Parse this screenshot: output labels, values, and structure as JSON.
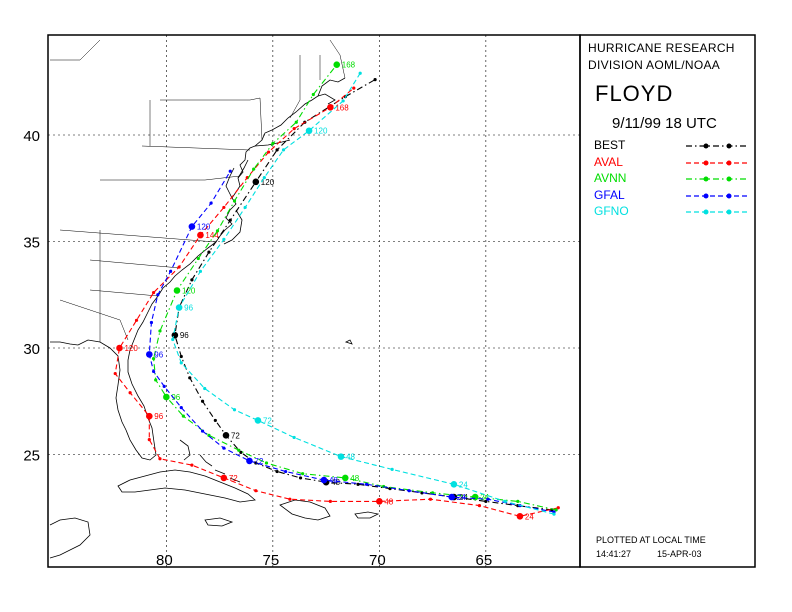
{
  "header": {
    "org_line1": "HURRICANE RESEARCH",
    "org_line2": "DIVISION AOML/NOAA",
    "storm_name": "FLOYD",
    "init_time": "9/11/99 18  UTC"
  },
  "legend": [
    {
      "label": "BEST",
      "color": "#000000",
      "dash": "dashdot"
    },
    {
      "label": "AVAL",
      "color": "#ff0000",
      "dash": "dash"
    },
    {
      "label": "AVNN",
      "color": "#00dd00",
      "dash": "dashdot"
    },
    {
      "label": "GFAL",
      "color": "#0000ff",
      "dash": "dash"
    },
    {
      "label": "GFNO",
      "color": "#00e0e0",
      "dash": "dash"
    }
  ],
  "footer": {
    "plotted_note": "PLOTTED AT LOCAL TIME",
    "clock": "14:41:27",
    "date": "15-APR-03"
  },
  "axes": {
    "lat_ticks": [
      "40",
      "35",
      "30",
      "25"
    ],
    "lon_ticks": [
      "80",
      "75",
      "70",
      "65"
    ],
    "lon_range_west": [
      -85.5,
      -60.5
    ],
    "lat_range": [
      19.5,
      45
    ]
  },
  "chart_data": {
    "type": "map-tracks",
    "units": {
      "x": "longitude (deg W as negative)",
      "y": "latitude (deg N)"
    },
    "series": [
      {
        "name": "BEST",
        "color": "#000000",
        "points": [
          [
            -61.9,
            22.4
          ],
          [
            -63.5,
            22.6
          ],
          [
            -65,
            22.8
          ],
          [
            -66.5,
            23.0
          ],
          [
            -68,
            23.2
          ],
          [
            -69.5,
            23.4
          ],
          [
            -71,
            23.6
          ],
          [
            -72.5,
            23.7
          ],
          [
            -73.7,
            23.9
          ],
          [
            -74.8,
            24.2
          ],
          [
            -75.8,
            24.6
          ],
          [
            -76.5,
            25.1
          ],
          [
            -77.2,
            25.9
          ],
          [
            -77.7,
            26.6
          ],
          [
            -78.3,
            27.5
          ],
          [
            -78.9,
            28.6
          ],
          [
            -79.3,
            29.6
          ],
          [
            -79.6,
            30.6
          ],
          [
            -79.4,
            31.9
          ],
          [
            -78.8,
            33.2
          ],
          [
            -78.0,
            34.5
          ],
          [
            -77.0,
            36.0
          ],
          [
            -75.8,
            37.8
          ],
          [
            -74.8,
            39.3
          ],
          [
            -73.5,
            40.6
          ],
          [
            -71.6,
            41.8
          ],
          [
            -70.2,
            42.6
          ]
        ],
        "labels": [
          {
            "text": "24",
            "lon": -66.5,
            "lat": 23.0
          },
          {
            "text": "48",
            "lon": -72.5,
            "lat": 23.7
          },
          {
            "text": "72",
            "lon": -77.2,
            "lat": 25.9
          },
          {
            "text": "96",
            "lon": -79.6,
            "lat": 30.6
          },
          {
            "text": "120",
            "lon": -75.8,
            "lat": 37.8
          }
        ]
      },
      {
        "name": "AVAL",
        "color": "#ff0000",
        "points": [
          [
            -61.6,
            22.5
          ],
          [
            -63.4,
            22.1
          ],
          [
            -65.3,
            22.6
          ],
          [
            -67.6,
            22.9
          ],
          [
            -70.0,
            22.8
          ],
          [
            -72.3,
            22.8
          ],
          [
            -74.2,
            22.9
          ],
          [
            -75.8,
            23.3
          ],
          [
            -77.3,
            23.9
          ],
          [
            -78.8,
            24.5
          ],
          [
            -80.3,
            24.8
          ],
          [
            -80.8,
            25.7
          ],
          [
            -80.8,
            26.8
          ],
          [
            -81.7,
            27.9
          ],
          [
            -82.4,
            28.8
          ],
          [
            -82.2,
            30.0
          ],
          [
            -81.4,
            31.3
          ],
          [
            -80.6,
            32.6
          ],
          [
            -79.4,
            33.8
          ],
          [
            -78.4,
            35.3
          ],
          [
            -77.3,
            36.6
          ],
          [
            -76.2,
            38.0
          ],
          [
            -75.2,
            39.2
          ],
          [
            -74.0,
            40.3
          ],
          [
            -72.3,
            41.3
          ],
          [
            -71.2,
            42.2
          ]
        ],
        "labels": [
          {
            "text": "24",
            "lon": -63.4,
            "lat": 22.1
          },
          {
            "text": "48",
            "lon": -70.0,
            "lat": 22.8
          },
          {
            "text": "72",
            "lon": -77.3,
            "lat": 23.9
          },
          {
            "text": "96",
            "lon": -80.8,
            "lat": 26.8
          },
          {
            "text": "120",
            "lon": -82.2,
            "lat": 30.0
          },
          {
            "text": "144",
            "lon": -78.4,
            "lat": 35.3
          },
          {
            "text": "168",
            "lon": -72.3,
            "lat": 41.3
          }
        ]
      },
      {
        "name": "AVNN",
        "color": "#00dd00",
        "points": [
          [
            -61.7,
            22.4
          ],
          [
            -63.5,
            22.8
          ],
          [
            -65.5,
            23.0
          ],
          [
            -67.5,
            23.2
          ],
          [
            -69.8,
            23.5
          ],
          [
            -71.6,
            23.9
          ],
          [
            -73.6,
            24.1
          ],
          [
            -75.3,
            24.6
          ],
          [
            -76.6,
            25.2
          ],
          [
            -78.0,
            25.9
          ],
          [
            -79.2,
            26.8
          ],
          [
            -80.0,
            27.7
          ],
          [
            -80.5,
            28.5
          ],
          [
            -80.6,
            29.5
          ],
          [
            -80.3,
            30.8
          ],
          [
            -79.5,
            32.7
          ],
          [
            -78.5,
            34.2
          ],
          [
            -77.6,
            35.5
          ],
          [
            -76.8,
            36.9
          ],
          [
            -75.9,
            38.4
          ],
          [
            -75.0,
            39.6
          ],
          [
            -73.9,
            40.6
          ],
          [
            -73.1,
            41.9
          ],
          [
            -72.0,
            43.3
          ]
        ],
        "labels": [
          {
            "text": "24",
            "lon": -65.5,
            "lat": 23.0
          },
          {
            "text": "48",
            "lon": -71.6,
            "lat": 23.9
          },
          {
            "text": "96",
            "lon": -80.0,
            "lat": 27.7
          },
          {
            "text": "120",
            "lon": -79.5,
            "lat": 32.7
          },
          {
            "text": "168",
            "lon": -72.0,
            "lat": 43.3
          }
        ]
      },
      {
        "name": "GFAL",
        "color": "#0000ff",
        "points": [
          [
            -61.8,
            22.3
          ],
          [
            -63.4,
            22.6
          ],
          [
            -64.9,
            22.9
          ],
          [
            -66.6,
            23.0
          ],
          [
            -68.6,
            23.3
          ],
          [
            -70.6,
            23.6
          ],
          [
            -72.6,
            23.8
          ],
          [
            -74.4,
            24.2
          ],
          [
            -76.1,
            24.7
          ],
          [
            -77.3,
            25.3
          ],
          [
            -78.3,
            26.1
          ],
          [
            -79.3,
            27.2
          ],
          [
            -80.1,
            28.2
          ],
          [
            -80.6,
            28.9
          ],
          [
            -80.8,
            29.7
          ],
          [
            -80.7,
            31.2
          ],
          [
            -80.4,
            32.5
          ],
          [
            -79.8,
            33.6
          ],
          [
            -78.8,
            35.7
          ],
          [
            -77.9,
            36.8
          ],
          [
            -77.0,
            38.3
          ]
        ],
        "labels": [
          {
            "text": "24",
            "lon": -66.6,
            "lat": 23.0
          },
          {
            "text": "48",
            "lon": -72.6,
            "lat": 23.8
          },
          {
            "text": "72",
            "lon": -76.1,
            "lat": 24.7
          },
          {
            "text": "96",
            "lon": -80.8,
            "lat": 29.7
          },
          {
            "text": "120",
            "lon": -78.8,
            "lat": 35.7
          }
        ]
      },
      {
        "name": "GFNO",
        "color": "#00e0e0",
        "points": [
          [
            -61.8,
            22.2
          ],
          [
            -64.1,
            22.8
          ],
          [
            -66.5,
            23.6
          ],
          [
            -69.4,
            24.3
          ],
          [
            -71.8,
            24.9
          ],
          [
            -74.0,
            25.8
          ],
          [
            -75.7,
            26.6
          ],
          [
            -76.8,
            27.1
          ],
          [
            -78.2,
            28.1
          ],
          [
            -79.3,
            29.3
          ],
          [
            -79.7,
            30.4
          ],
          [
            -79.4,
            31.9
          ],
          [
            -78.4,
            33.6
          ],
          [
            -77.3,
            35.1
          ],
          [
            -76.3,
            36.6
          ],
          [
            -75.4,
            38.0
          ],
          [
            -74.5,
            39.3
          ],
          [
            -73.3,
            40.2
          ],
          [
            -71.7,
            41.6
          ],
          [
            -70.9,
            42.9
          ]
        ],
        "labels": [
          {
            "text": "24",
            "lon": -66.5,
            "lat": 23.6
          },
          {
            "text": "48",
            "lon": -71.8,
            "lat": 24.9
          },
          {
            "text": "72",
            "lon": -75.7,
            "lat": 26.6
          },
          {
            "text": "96",
            "lon": -79.4,
            "lat": 31.9
          },
          {
            "text": "120",
            "lon": -73.3,
            "lat": 40.2
          }
        ]
      }
    ]
  }
}
